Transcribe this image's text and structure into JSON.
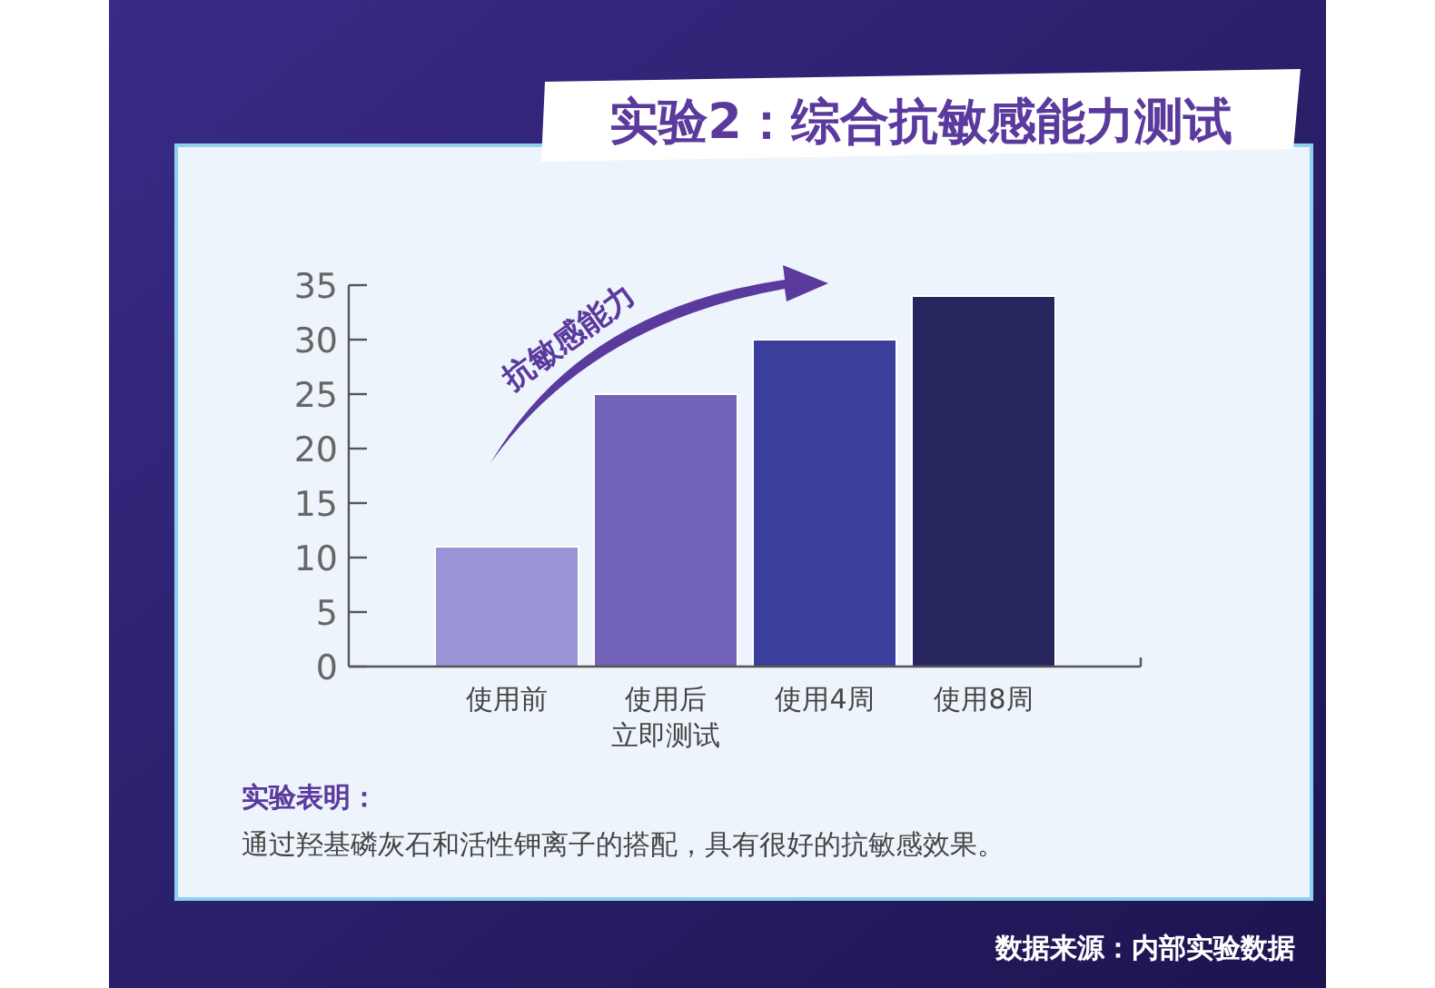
{
  "chart_data": {
    "type": "bar",
    "title": "实验2：综合抗敏感能力测试",
    "categories": [
      "使用前",
      "使用后立即测试",
      "使用4周",
      "使用8周"
    ],
    "values": [
      11,
      25,
      30,
      34
    ],
    "colors": [
      "#9a94d6",
      "#7363b8",
      "#3c3e9c",
      "#27265e"
    ],
    "ylim": [
      0,
      35
    ],
    "yticks": [
      0,
      5,
      10,
      15,
      20,
      25,
      30,
      35
    ],
    "grid": false,
    "annotations": [
      "抗敏感能力",
      "实验表明：",
      "通过羟基磷灰石和活性钾离子的搭配，具有很好的抗敏感效果。",
      "数据来源：内部实验数据"
    ]
  }
}
